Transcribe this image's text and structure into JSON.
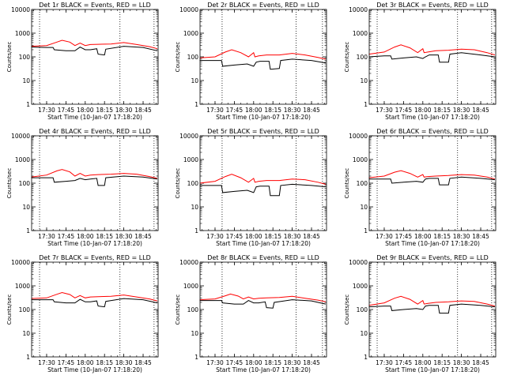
{
  "figure": {
    "background": "#ffffff",
    "axis_color": "#000000",
    "series_colors": {
      "events": "#000000",
      "lld": "#ff0000"
    }
  },
  "chart_data": [
    {
      "type": "line",
      "title": "Det 1r BLACK = Events, RED = LLD",
      "xlabel": "Start Time (10-Jan-07 17:18:20)",
      "ylabel": "Counts/sec",
      "x_tick_labels": [
        "17:30",
        "17:45",
        "18:00",
        "18:15",
        "18:30",
        "18:45"
      ],
      "y_tick_labels": [
        "1",
        "10",
        "100",
        "1000",
        "10000"
      ],
      "y_scale": "log",
      "ylim": [
        1,
        10000
      ],
      "xlim": [
        "17:18:20",
        "18:56:40"
      ],
      "vertical_markers": [
        "17:24:30",
        "18:27:00",
        "18:53:30"
      ],
      "series": [
        {
          "name": "Events",
          "color": "#000000",
          "x": [
            "17:18",
            "17:30",
            "17:35",
            "17:36",
            "17:45",
            "17:52",
            "17:56",
            "18:00",
            "18:04",
            "18:09",
            "18:10",
            "18:15",
            "18:16",
            "18:30",
            "18:45",
            "18:56"
          ],
          "y": [
            260,
            250,
            250,
            200,
            180,
            180,
            260,
            200,
            200,
            220,
            130,
            120,
            210,
            280,
            250,
            180
          ]
        },
        {
          "name": "LLD",
          "color": "#ff0000",
          "x": [
            "17:18",
            "17:30",
            "17:38",
            "17:42",
            "17:48",
            "17:52",
            "17:56",
            "18:00",
            "18:04",
            "18:10",
            "18:20",
            "18:30",
            "18:40",
            "18:50",
            "18:56"
          ],
          "y": [
            280,
            300,
            420,
            500,
            420,
            300,
            380,
            300,
            330,
            340,
            350,
            400,
            330,
            270,
            220
          ]
        }
      ]
    },
    {
      "type": "line",
      "title": "Det 2r BLACK = Events, RED = LLD",
      "xlabel": "Start Time (10-Jan-07 17:18:20)",
      "ylabel": "Counts/sec",
      "x_tick_labels": [
        "17:30",
        "17:45",
        "18:00",
        "18:15",
        "18:30",
        "18:45"
      ],
      "y_tick_labels": [
        "1",
        "10",
        "100",
        "1000",
        "10000"
      ],
      "y_scale": "log",
      "ylim": [
        1,
        10000
      ],
      "xlim": [
        "17:18:20",
        "18:56:40"
      ],
      "vertical_markers": [
        "17:35:30",
        "18:33:00",
        "18:53:30"
      ],
      "series": [
        {
          "name": "Events",
          "color": "#000000",
          "x": [
            "17:18",
            "17:30",
            "17:35",
            "17:36",
            "17:45",
            "17:55",
            "18:00",
            "18:02",
            "18:05",
            "18:12",
            "18:13",
            "18:20",
            "18:21",
            "18:30",
            "18:45",
            "18:56"
          ],
          "y": [
            70,
            70,
            70,
            40,
            45,
            50,
            40,
            60,
            65,
            65,
            30,
            32,
            70,
            80,
            70,
            55
          ]
        },
        {
          "name": "LLD",
          "color": "#ff0000",
          "x": [
            "17:18",
            "17:30",
            "17:38",
            "17:43",
            "17:50",
            "17:56",
            "18:00",
            "18:01",
            "18:04",
            "18:10",
            "18:20",
            "18:30",
            "18:40",
            "18:50",
            "18:56"
          ],
          "y": [
            90,
            100,
            160,
            200,
            150,
            100,
            150,
            100,
            110,
            120,
            120,
            140,
            120,
            95,
            80
          ]
        }
      ]
    },
    {
      "type": "line",
      "title": "Det 3r BLACK = Events, RED = LLD",
      "xlabel": "Start Time (10-Jan-07 17:18:20)",
      "ylabel": "Counts/sec",
      "x_tick_labels": [
        "17:30",
        "17:45",
        "18:00",
        "18:15",
        "18:30",
        "18:45"
      ],
      "y_tick_labels": [
        "1",
        "10",
        "100",
        "1000",
        "10000"
      ],
      "y_scale": "log",
      "ylim": [
        1,
        10000
      ],
      "xlim": [
        "17:18:20",
        "18:56:40"
      ],
      "vertical_markers": [
        "17:24:30",
        "18:27:00",
        "18:53:30"
      ],
      "series": [
        {
          "name": "Events",
          "color": "#000000",
          "x": [
            "17:18",
            "17:30",
            "17:35",
            "17:36",
            "17:45",
            "17:55",
            "18:00",
            "18:02",
            "18:05",
            "18:12",
            "18:13",
            "18:20",
            "18:21",
            "18:30",
            "18:45",
            "18:56"
          ],
          "y": [
            100,
            110,
            110,
            80,
            90,
            100,
            85,
            100,
            120,
            120,
            60,
            60,
            130,
            150,
            120,
            100
          ]
        },
        {
          "name": "LLD",
          "color": "#ff0000",
          "x": [
            "17:18",
            "17:30",
            "17:38",
            "17:43",
            "17:50",
            "17:56",
            "18:00",
            "18:01",
            "18:04",
            "18:10",
            "18:20",
            "18:30",
            "18:40",
            "18:50",
            "18:56"
          ],
          "y": [
            130,
            160,
            260,
            320,
            240,
            150,
            220,
            150,
            160,
            180,
            190,
            210,
            200,
            150,
            120
          ]
        }
      ]
    },
    {
      "type": "line",
      "title": "Det 4r BLACK = Events, RED = LLD",
      "xlabel": "Start Time (10-Jan-07 17:18:20)",
      "ylabel": "Counts/sec",
      "x_tick_labels": [
        "17:30",
        "17:45",
        "18:00",
        "18:15",
        "18:30",
        "18:45"
      ],
      "y_tick_labels": [
        "1",
        "10",
        "100",
        "1000",
        "10000"
      ],
      "y_scale": "log",
      "ylim": [
        1,
        10000
      ],
      "xlim": [
        "17:18:20",
        "18:56:40"
      ],
      "vertical_markers": [
        "17:24:30",
        "18:27:00",
        "18:53:30"
      ],
      "series": [
        {
          "name": "Events",
          "color": "#000000",
          "x": [
            "17:18",
            "17:30",
            "17:35",
            "17:36",
            "17:45",
            "17:52",
            "17:56",
            "18:00",
            "18:04",
            "18:09",
            "18:10",
            "18:15",
            "18:16",
            "18:30",
            "18:45",
            "18:56"
          ],
          "y": [
            170,
            170,
            170,
            110,
            120,
            130,
            160,
            140,
            150,
            160,
            80,
            80,
            170,
            200,
            180,
            150
          ]
        },
        {
          "name": "LLD",
          "color": "#ff0000",
          "x": [
            "17:18",
            "17:30",
            "17:38",
            "17:42",
            "17:48",
            "17:52",
            "17:56",
            "18:00",
            "18:04",
            "18:10",
            "18:20",
            "18:30",
            "18:40",
            "18:50",
            "18:56"
          ],
          "y": [
            180,
            220,
            330,
            380,
            300,
            200,
            260,
            200,
            220,
            230,
            240,
            260,
            240,
            190,
            160
          ]
        }
      ]
    },
    {
      "type": "line",
      "title": "Det 5r BLACK = Events, RED = LLD",
      "xlabel": "Start Time (10-Jan-07 17:18:20)",
      "ylabel": "Counts/sec",
      "x_tick_labels": [
        "17:30",
        "17:45",
        "18:00",
        "18:15",
        "18:30",
        "18:45"
      ],
      "y_tick_labels": [
        "1",
        "10",
        "100",
        "1000",
        "10000"
      ],
      "y_scale": "log",
      "ylim": [
        1,
        10000
      ],
      "xlim": [
        "17:18:20",
        "18:56:40"
      ],
      "vertical_markers": [
        "17:35:30",
        "18:33:00",
        "18:53:30"
      ],
      "series": [
        {
          "name": "Events",
          "color": "#000000",
          "x": [
            "17:18",
            "17:30",
            "17:35",
            "17:36",
            "17:45",
            "17:55",
            "18:00",
            "18:02",
            "18:05",
            "18:12",
            "18:13",
            "18:20",
            "18:21",
            "18:30",
            "18:45",
            "18:56"
          ],
          "y": [
            80,
            80,
            80,
            40,
            45,
            50,
            40,
            70,
            75,
            75,
            30,
            30,
            80,
            90,
            80,
            70
          ]
        },
        {
          "name": "LLD",
          "color": "#ff0000",
          "x": [
            "17:18",
            "17:30",
            "17:38",
            "17:43",
            "17:50",
            "17:56",
            "18:00",
            "18:01",
            "18:04",
            "18:10",
            "18:20",
            "18:30",
            "18:40",
            "18:50",
            "18:56"
          ],
          "y": [
            100,
            120,
            190,
            240,
            170,
            110,
            160,
            110,
            120,
            130,
            130,
            150,
            140,
            110,
            90
          ]
        }
      ]
    },
    {
      "type": "line",
      "title": "Det 6r BLACK = Events, RED = LLD",
      "xlabel": "Start Time (10-Jan-07 17:18:20)",
      "ylabel": "Counts/sec",
      "x_tick_labels": [
        "17:30",
        "17:45",
        "18:00",
        "18:15",
        "18:30",
        "18:45"
      ],
      "y_tick_labels": [
        "1",
        "10",
        "100",
        "1000",
        "10000"
      ],
      "y_scale": "log",
      "ylim": [
        1,
        10000
      ],
      "xlim": [
        "17:18:20",
        "18:56:40"
      ],
      "vertical_markers": [
        "17:24:30",
        "18:27:00",
        "18:53:30"
      ],
      "series": [
        {
          "name": "Events",
          "color": "#000000",
          "x": [
            "17:18",
            "17:30",
            "17:35",
            "17:36",
            "17:45",
            "17:55",
            "18:00",
            "18:02",
            "18:05",
            "18:12",
            "18:13",
            "18:20",
            "18:21",
            "18:30",
            "18:45",
            "18:56"
          ],
          "y": [
            150,
            150,
            150,
            100,
            110,
            120,
            110,
            150,
            160,
            160,
            85,
            85,
            160,
            180,
            160,
            140
          ]
        },
        {
          "name": "LLD",
          "color": "#ff0000",
          "x": [
            "17:18",
            "17:30",
            "17:38",
            "17:43",
            "17:50",
            "17:56",
            "18:00",
            "18:01",
            "18:04",
            "18:10",
            "18:20",
            "18:30",
            "18:40",
            "18:50",
            "18:56"
          ],
          "y": [
            170,
            200,
            290,
            340,
            260,
            180,
            230,
            180,
            190,
            200,
            210,
            230,
            220,
            180,
            150
          ]
        }
      ]
    },
    {
      "type": "line",
      "title": "Det 7r BLACK = Events, RED = LLD",
      "xlabel": "Start Time (10-Jan-07 17:18:20)",
      "ylabel": "Counts/sec",
      "x_tick_labels": [
        "17:30",
        "17:45",
        "18:00",
        "18:15",
        "18:30",
        "18:45"
      ],
      "y_tick_labels": [
        "1",
        "10",
        "100",
        "1000",
        "10000"
      ],
      "y_scale": "log",
      "ylim": [
        1,
        10000
      ],
      "xlim": [
        "17:18:20",
        "18:56:40"
      ],
      "vertical_markers": [
        "17:24:30",
        "18:27:00",
        "18:53:30"
      ],
      "series": [
        {
          "name": "Events",
          "color": "#000000",
          "x": [
            "17:18",
            "17:30",
            "17:35",
            "17:36",
            "17:45",
            "17:52",
            "17:56",
            "18:00",
            "18:04",
            "18:09",
            "18:10",
            "18:15",
            "18:16",
            "18:30",
            "18:45",
            "18:56"
          ],
          "y": [
            260,
            260,
            260,
            210,
            190,
            190,
            270,
            210,
            210,
            230,
            140,
            130,
            220,
            290,
            260,
            190
          ]
        },
        {
          "name": "LLD",
          "color": "#ff0000",
          "x": [
            "17:18",
            "17:30",
            "17:38",
            "17:42",
            "17:48",
            "17:52",
            "17:56",
            "18:00",
            "18:04",
            "18:10",
            "18:20",
            "18:30",
            "18:40",
            "18:50",
            "18:56"
          ],
          "y": [
            290,
            310,
            440,
            520,
            430,
            310,
            390,
            310,
            340,
            350,
            360,
            410,
            340,
            280,
            230
          ]
        }
      ]
    },
    {
      "type": "line",
      "title": "Det 8r BLACK = Events, RED = LLD",
      "xlabel": "Start Time (10-Jan-07 17:18:20)",
      "ylabel": "Counts/sec",
      "x_tick_labels": [
        "17:30",
        "17:45",
        "18:00",
        "18:15",
        "18:30",
        "18:45"
      ],
      "y_tick_labels": [
        "1",
        "10",
        "100",
        "1000",
        "10000"
      ],
      "y_scale": "log",
      "ylim": [
        1,
        10000
      ],
      "xlim": [
        "17:18:20",
        "18:56:40"
      ],
      "vertical_markers": [
        "17:35:30",
        "18:33:00",
        "18:53:30"
      ],
      "series": [
        {
          "name": "Events",
          "color": "#000000",
          "x": [
            "17:18",
            "17:30",
            "17:35",
            "17:36",
            "17:45",
            "17:52",
            "17:56",
            "18:00",
            "18:04",
            "18:09",
            "18:10",
            "18:15",
            "18:16",
            "18:30",
            "18:45",
            "18:56"
          ],
          "y": [
            240,
            240,
            240,
            190,
            170,
            170,
            240,
            190,
            190,
            210,
            120,
            115,
            200,
            260,
            230,
            170
          ]
        },
        {
          "name": "LLD",
          "color": "#ff0000",
          "x": [
            "17:18",
            "17:30",
            "17:38",
            "17:42",
            "17:48",
            "17:52",
            "17:56",
            "18:00",
            "18:04",
            "18:10",
            "18:20",
            "18:30",
            "18:40",
            "18:50",
            "18:56"
          ],
          "y": [
            260,
            280,
            380,
            450,
            370,
            280,
            340,
            280,
            300,
            310,
            320,
            360,
            300,
            250,
            210
          ]
        }
      ]
    },
    {
      "type": "line",
      "title": "Det 9r BLACK = Events, RED = LLD",
      "xlabel": "Start Time (10-Jan-07 17:18:20)",
      "ylabel": "Counts/sec",
      "x_tick_labels": [
        "17:30",
        "17:45",
        "18:00",
        "18:15",
        "18:30",
        "18:45"
      ],
      "y_tick_labels": [
        "1",
        "10",
        "100",
        "1000",
        "10000"
      ],
      "y_scale": "log",
      "ylim": [
        1,
        10000
      ],
      "xlim": [
        "17:18:20",
        "18:56:40"
      ],
      "vertical_markers": [
        "17:24:30",
        "18:27:00",
        "18:53:30"
      ],
      "series": [
        {
          "name": "Events",
          "color": "#000000",
          "x": [
            "17:18",
            "17:30",
            "17:35",
            "17:36",
            "17:45",
            "17:55",
            "18:00",
            "18:02",
            "18:05",
            "18:12",
            "18:13",
            "18:20",
            "18:21",
            "18:30",
            "18:45",
            "18:56"
          ],
          "y": [
            130,
            140,
            140,
            90,
            100,
            110,
            100,
            140,
            150,
            150,
            70,
            70,
            150,
            170,
            150,
            130
          ]
        },
        {
          "name": "LLD",
          "color": "#ff0000",
          "x": [
            "17:18",
            "17:30",
            "17:38",
            "17:43",
            "17:50",
            "17:56",
            "18:00",
            "18:01",
            "18:04",
            "18:10",
            "18:20",
            "18:30",
            "18:40",
            "18:50",
            "18:56"
          ],
          "y": [
            150,
            190,
            300,
            360,
            270,
            170,
            240,
            170,
            180,
            200,
            210,
            230,
            220,
            170,
            140
          ]
        }
      ]
    }
  ]
}
